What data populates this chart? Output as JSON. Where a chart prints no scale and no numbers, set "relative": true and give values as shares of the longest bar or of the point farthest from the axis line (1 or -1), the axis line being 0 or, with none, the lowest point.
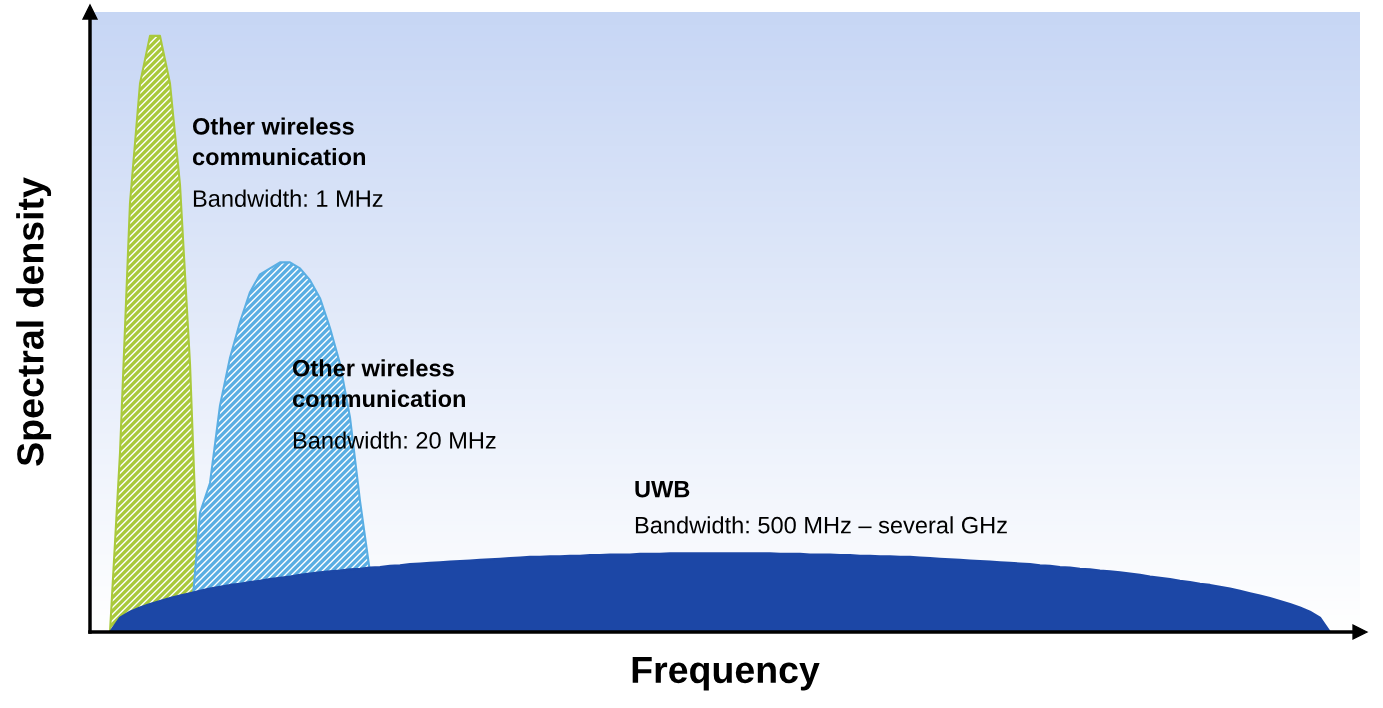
{
  "chart_data": {
    "type": "area",
    "relative": true,
    "xlabel": "Frequency",
    "ylabel": "Spectral density",
    "legend": false,
    "categories": [
      null,
      null,
      null,
      null,
      null,
      null,
      null,
      null,
      null,
      null,
      null,
      null,
      null,
      null,
      null,
      null,
      null,
      null,
      null,
      null,
      null,
      null,
      null,
      null,
      null,
      null,
      null,
      null,
      null,
      null,
      null,
      null,
      null,
      null,
      null,
      null,
      null,
      null,
      null,
      null,
      null,
      null,
      null,
      null,
      null,
      null,
      null,
      null,
      null,
      null,
      null,
      null,
      null,
      null,
      null,
      null,
      null,
      null,
      null,
      null,
      null,
      null,
      null,
      null,
      null,
      null,
      null,
      null,
      null,
      null,
      null,
      null,
      null,
      null,
      null,
      null,
      null,
      null,
      null,
      null,
      null,
      null,
      null,
      null,
      null,
      null,
      null,
      null,
      null,
      null,
      null,
      null,
      null,
      null,
      null,
      null,
      null,
      null,
      null,
      null,
      null,
      null,
      null,
      null,
      null,
      null,
      null,
      null,
      null,
      null,
      null,
      null,
      null,
      null,
      null,
      null,
      null,
      null,
      null,
      null,
      null,
      null,
      null,
      null,
      null,
      null,
      null,
      null
    ],
    "series": [
      {
        "name": "Other wireless\ncommunication",
        "color": "#a9c93b",
        "values": [
          0,
          0,
          0,
          0.3,
          0.72,
          0.92,
          1,
          1,
          0.92,
          0.75,
          0.45,
          0,
          0,
          0,
          0,
          0,
          0,
          0,
          0,
          0,
          0,
          0,
          0,
          0,
          0,
          0,
          0,
          0,
          0,
          0,
          0,
          0,
          0,
          0,
          0,
          0,
          0,
          0,
          0,
          0,
          0,
          0,
          0,
          0,
          0,
          0,
          0,
          0,
          0,
          0,
          0,
          0,
          0,
          0,
          0,
          0,
          0,
          0,
          0,
          0,
          0,
          0,
          0,
          0,
          0,
          0,
          0,
          0,
          0,
          0,
          0,
          0,
          0,
          0,
          0,
          0,
          0,
          0,
          0,
          0,
          0,
          0,
          0,
          0,
          0,
          0,
          0,
          0,
          0,
          0,
          0,
          0,
          0,
          0,
          0,
          0,
          0,
          0,
          0,
          0,
          0,
          0,
          0,
          0,
          0,
          0,
          0,
          0,
          0,
          0,
          0,
          0,
          0,
          0,
          0,
          0,
          0,
          0,
          0,
          0,
          0,
          0,
          0,
          0,
          0,
          0,
          0,
          0
        ]
      },
      {
        "name": "Other wireless\ncommunication",
        "color": "#5aaee3",
        "values": [
          0,
          0,
          0,
          0,
          0,
          0,
          0,
          0,
          0,
          0,
          0,
          0.2,
          0.25,
          0.38,
          0.46,
          0.52,
          0.57,
          0.6,
          0.61,
          0.62,
          0.62,
          0.61,
          0.59,
          0.56,
          0.51,
          0.45,
          0.36,
          0.22,
          0.1,
          0,
          0,
          0,
          0,
          0,
          0,
          0,
          0,
          0,
          0,
          0,
          0,
          0,
          0,
          0,
          0,
          0,
          0,
          0,
          0,
          0,
          0,
          0,
          0,
          0,
          0,
          0,
          0,
          0,
          0,
          0,
          0,
          0,
          0,
          0,
          0,
          0,
          0,
          0,
          0,
          0,
          0,
          0,
          0,
          0,
          0,
          0,
          0,
          0,
          0,
          0,
          0,
          0,
          0,
          0,
          0,
          0,
          0,
          0,
          0,
          0,
          0,
          0,
          0,
          0,
          0,
          0,
          0,
          0,
          0,
          0,
          0,
          0,
          0,
          0,
          0,
          0,
          0,
          0,
          0,
          0,
          0,
          0,
          0,
          0,
          0,
          0,
          0,
          0,
          0,
          0,
          0,
          0,
          0,
          0,
          0,
          0,
          0,
          0
        ]
      },
      {
        "name": "UWB",
        "color": "#1c47a6",
        "values": [
          0,
          0,
          0,
          0.024,
          0.034,
          0.041,
          0.047,
          0.052,
          0.057,
          0.061,
          0.065,
          0.069,
          0.073,
          0.076,
          0.079,
          0.081,
          0.084,
          0.086,
          0.089,
          0.091,
          0.093,
          0.096,
          0.098,
          0.1,
          0.102,
          0.103,
          0.105,
          0.106,
          0.108,
          0.109,
          0.111,
          0.112,
          0.114,
          0.115,
          0.116,
          0.117,
          0.118,
          0.119,
          0.12,
          0.121,
          0.122,
          0.123,
          0.124,
          0.125,
          0.126,
          0.126,
          0.127,
          0.127,
          0.128,
          0.128,
          0.129,
          0.129,
          0.13,
          0.13,
          0.13,
          0.131,
          0.131,
          0.131,
          0.132,
          0.132,
          0.132,
          0.132,
          0.132,
          0.132,
          0.132,
          0.132,
          0.132,
          0.132,
          0.132,
          0.131,
          0.131,
          0.131,
          0.13,
          0.13,
          0.13,
          0.129,
          0.129,
          0.128,
          0.128,
          0.127,
          0.127,
          0.126,
          0.126,
          0.125,
          0.124,
          0.123,
          0.122,
          0.121,
          0.12,
          0.119,
          0.118,
          0.117,
          0.116,
          0.115,
          0.114,
          0.112,
          0.111,
          0.109,
          0.108,
          0.106,
          0.105,
          0.103,
          0.102,
          0.1,
          0.098,
          0.096,
          0.093,
          0.091,
          0.089,
          0.086,
          0.084,
          0.081,
          0.079,
          0.076,
          0.073,
          0.069,
          0.065,
          0.061,
          0.057,
          0.052,
          0.047,
          0.041,
          0.034,
          0.024,
          0,
          0,
          0,
          0
        ]
      }
    ],
    "annotations": [
      "Bandwidth: 1 MHz",
      "Bandwidth: 20 MHz",
      "Bandwidth: 500 MHz – several GHz"
    ]
  }
}
